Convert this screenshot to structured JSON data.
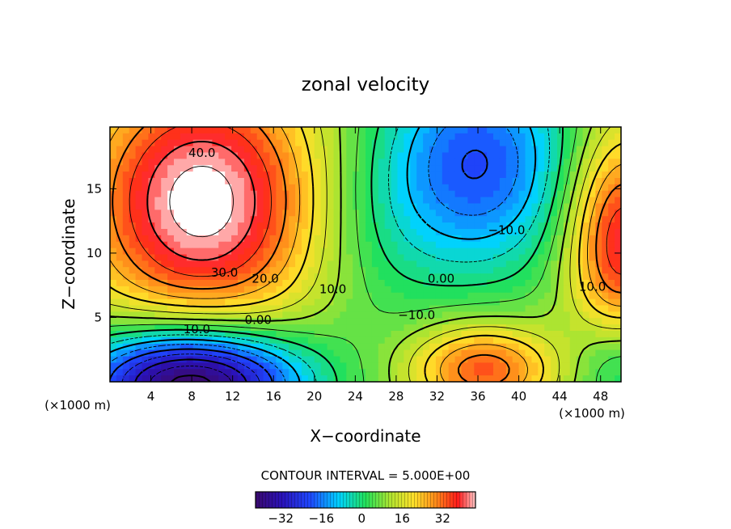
{
  "chart_data": {
    "type": "heatmap",
    "title": "zonal velocity",
    "xlabel": "X−coordinate",
    "ylabel": "Z−coordinate",
    "x_unit_left": "(×1000 m)",
    "x_unit_right": "(×1000 m)",
    "xlim": [
      0,
      50
    ],
    "ylim": [
      0,
      19.8
    ],
    "x_ticks": [
      4,
      8,
      12,
      16,
      20,
      24,
      28,
      32,
      36,
      40,
      44,
      48
    ],
    "y_ticks": [
      5,
      10,
      15
    ],
    "contour_interval_label": "CONTOUR INTERVAL = 5.000E+00",
    "colorbar": {
      "range": [
        -42,
        45
      ],
      "ticks": [
        -32,
        -16,
        0,
        16,
        32
      ],
      "colormap": "rainbow (purple-blue-cyan-green-yellow-orange-red-pink)"
    },
    "contour_labels": [
      {
        "text": "40.0",
        "x": 9.0,
        "y": 17.8
      },
      {
        "text": "30.0",
        "x": 11.2,
        "y": 8.5
      },
      {
        "text": "20.0",
        "x": 15.2,
        "y": 8.0
      },
      {
        "text": "10.0",
        "x": 21.8,
        "y": 7.2
      },
      {
        "text": "0.00",
        "x": 32.4,
        "y": 8.0
      },
      {
        "text": "−10.0",
        "x": 38.8,
        "y": 11.8
      },
      {
        "text": "10.0",
        "x": 47.2,
        "y": 7.4
      },
      {
        "text": "−10.0",
        "x": 30.0,
        "y": 5.2
      },
      {
        "text": "0.00",
        "x": 14.5,
        "y": 4.8
      },
      {
        "text": "−10.0",
        "x": 8.0,
        "y": 4.1
      }
    ],
    "features": [
      {
        "name": "core > 45",
        "x": 10,
        "y": 12.5,
        "value": 46
      },
      {
        "name": "minimum",
        "x": 36,
        "y": 18,
        "value": -18
      },
      {
        "name": "bottom-left minimum",
        "x": 7,
        "y": 1,
        "value": -42
      },
      {
        "name": "bottom-right maximum",
        "x": 36,
        "y": 1,
        "value": 33
      }
    ],
    "grid": false
  }
}
